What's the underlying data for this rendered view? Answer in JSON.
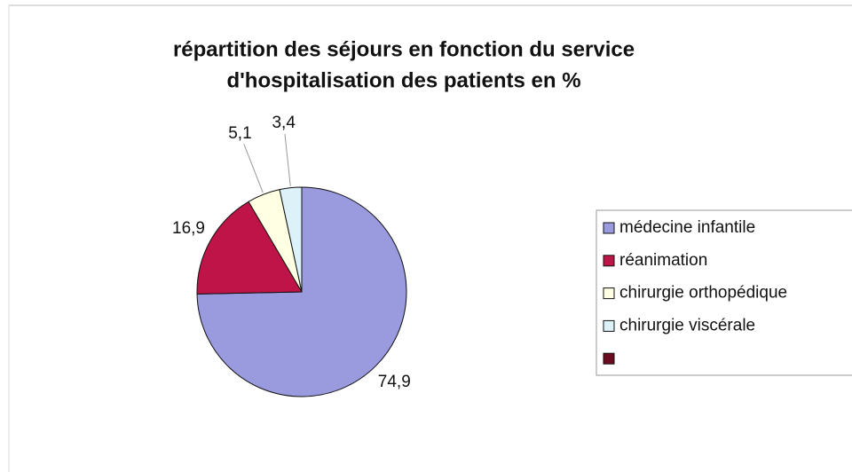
{
  "chart_data": {
    "type": "pie",
    "title": [
      "répartition des séjours en fonction du service",
      "d'hospitalisation des patients en %"
    ],
    "categories": [
      "médecine infantile",
      "réanimation",
      "chirurgie orthopédique",
      "chirurgie viscérale",
      null
    ],
    "values": [
      74.9,
      16.9,
      5.1,
      3.4,
      null
    ],
    "value_labels": [
      "74,9",
      "16,9",
      "5,1",
      "3,4",
      null
    ],
    "colors": [
      "#9a9ade",
      "#be1448",
      "#ffffe4",
      "#dcf2f8",
      "#6a0b1f"
    ],
    "legend": "right"
  }
}
